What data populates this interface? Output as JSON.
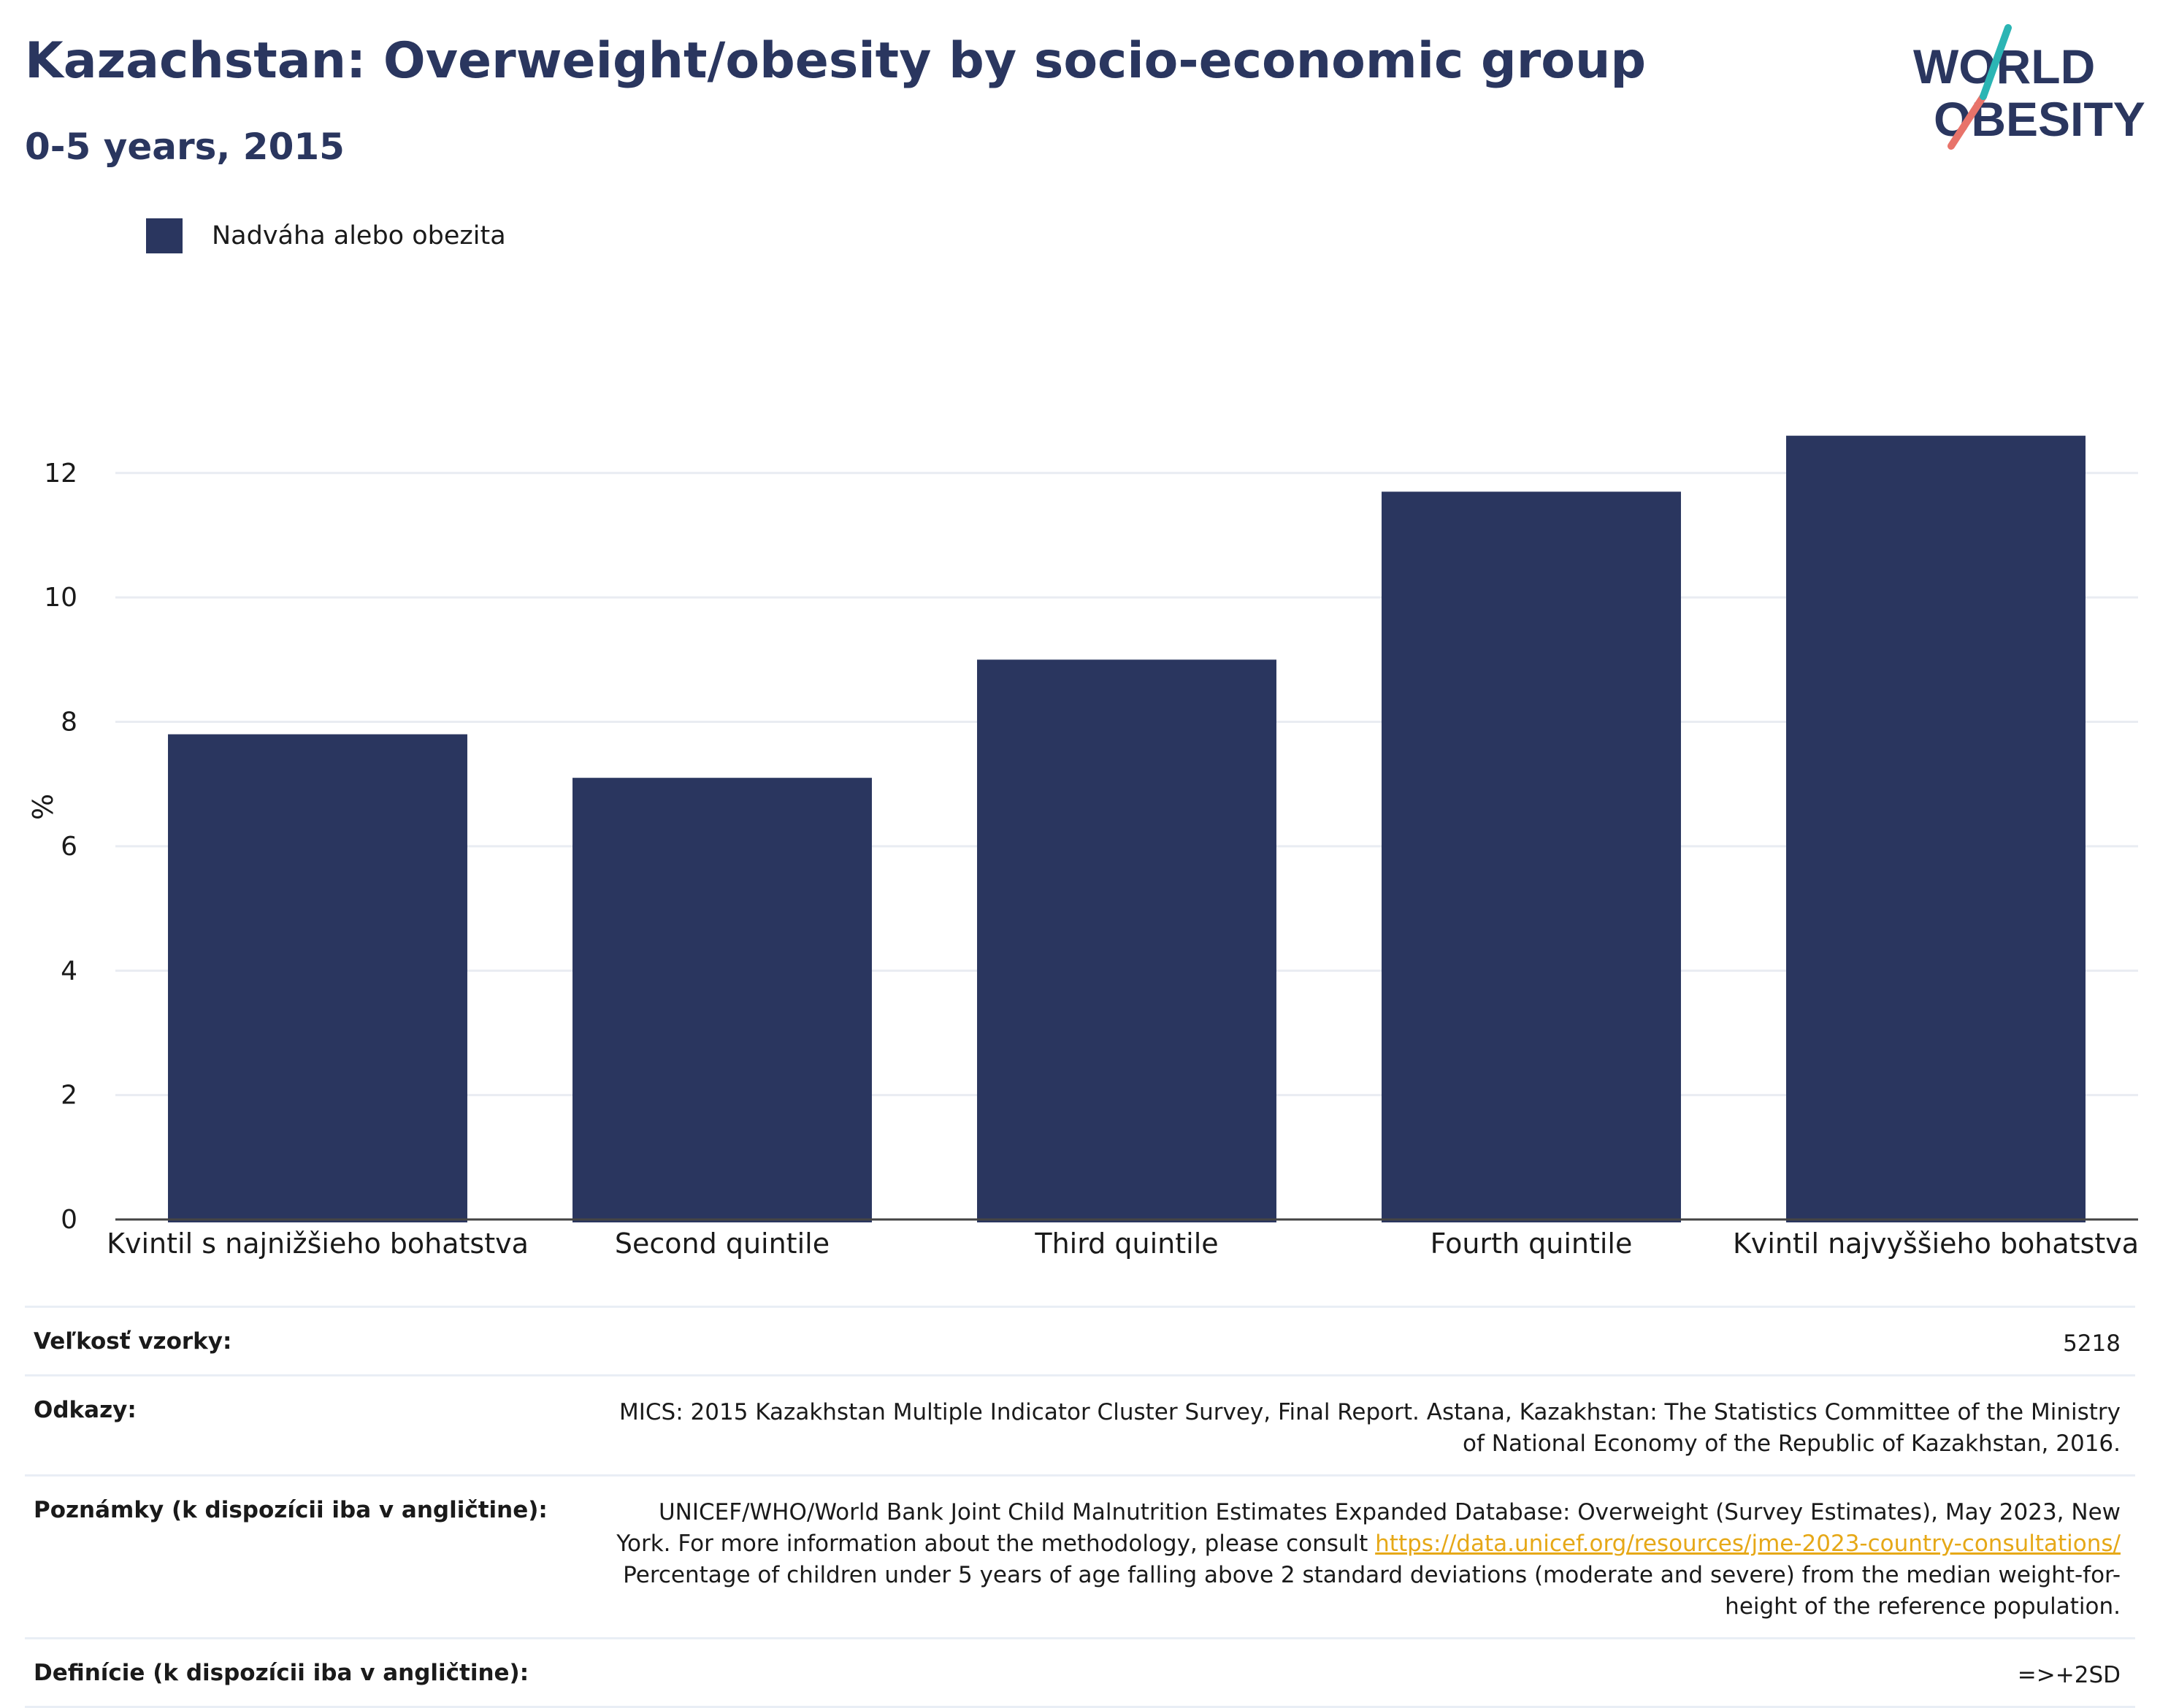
{
  "title": "Kazachstan: Overweight/obesity by socio-economic group",
  "subtitle": "0-5 years, 2015",
  "logo": {
    "line1": "WORLD",
    "line2": "OBESITY",
    "colors": {
      "text": "#2a365f",
      "teal": "#2bb5b4",
      "coral": "#e8736a"
    }
  },
  "legend": {
    "label": "Nadváha alebo obezita",
    "color": "#2a365f"
  },
  "chart_data": {
    "type": "bar",
    "categories": [
      "Kvintil s najnižšieho bohatstva",
      "Second quintile",
      "Third quintile",
      "Fourth quintile",
      "Kvintil najvyššieho bohatstva"
    ],
    "series": [
      {
        "name": "Nadváha alebo obezita",
        "values": [
          7.8,
          7.1,
          9.0,
          11.7,
          12.6
        ],
        "color": "#2a365f"
      }
    ],
    "ylabel": "%",
    "ylim": [
      0,
      13.5
    ],
    "yticks": [
      0,
      2,
      4,
      6,
      8,
      10,
      12
    ],
    "grid": true,
    "legend_position": "top-left"
  },
  "meta": {
    "sample_size": {
      "label": "Veľkosť vzorky:",
      "value": "5218"
    },
    "references": {
      "label": "Odkazy:",
      "value": "MICS: 2015 Kazakhstan Multiple Indicator Cluster Survey, Final Report. Astana, Kazakhstan: The Statistics Committee of the Ministry of National Economy of the Republic of Kazakhstan, 2016."
    },
    "notes": {
      "label": "Poznámky (k dispozícii iba v angličtine):",
      "text_before": "UNICEF/WHO/World Bank Joint Child Malnutrition Estimates Expanded Database: Overweight (Survey Estimates), May 2023, New York. For more information about the methodology, please consult ",
      "link": "https://data.unicef.org/resources/jme-2023-country-consultations/",
      "text_after": " Percentage of children under 5 years of age falling above 2 standard deviations (moderate and severe) from the median weight-for-height of the reference population."
    },
    "definitions": {
      "label": "Definície (k dispozícii iba v angličtine):",
      "value": "=>+2SD"
    }
  }
}
